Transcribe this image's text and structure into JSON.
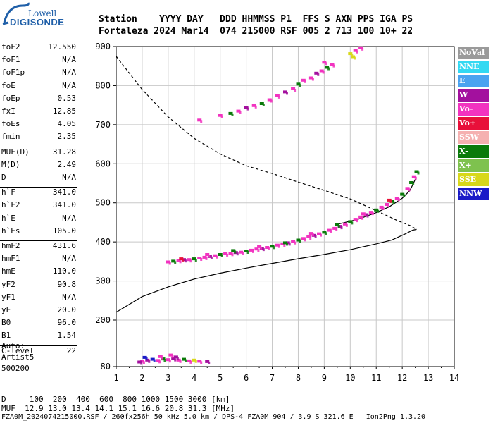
{
  "logo": {
    "line1": "Lowell",
    "line2": "DIGISONDE"
  },
  "header": {
    "line1": "Station    YYYY DAY   DDD HHMMSS P1  FFS S AXN PPS IGA PS",
    "line2": "Fortaleza 2024 Mar14  074 215000 RSF 005 2 713 100 10+ 22"
  },
  "params": {
    "group1": [
      {
        "label": "foF2",
        "value": "12.550"
      },
      {
        "label": "foF1",
        "value": "N/A"
      },
      {
        "label": "foF1p",
        "value": "N/A"
      },
      {
        "label": "foE",
        "value": "N/A"
      },
      {
        "label": "foEp",
        "value": "0.53"
      },
      {
        "label": "fxI",
        "value": "12.85"
      },
      {
        "label": "foEs",
        "value": "4.05"
      },
      {
        "label": "fmin",
        "value": "2.35"
      }
    ],
    "group2": [
      {
        "label": "MUF(D)",
        "value": "31.28"
      },
      {
        "label": "M(D)",
        "value": "2.49"
      },
      {
        "label": "D",
        "value": "N/A"
      }
    ],
    "group3": [
      {
        "label": "h`F",
        "value": "341.0"
      },
      {
        "label": "h`F2",
        "value": "341.0"
      },
      {
        "label": "h`E",
        "value": "N/A"
      },
      {
        "label": "h`Es",
        "value": "105.0"
      }
    ],
    "group4": [
      {
        "label": "hmF2",
        "value": "431.6"
      },
      {
        "label": "hmF1",
        "value": "N/A"
      },
      {
        "label": "hmE",
        "value": "110.0"
      },
      {
        "label": "yF2",
        "value": "90.8"
      },
      {
        "label": "yF1",
        "value": "N/A"
      },
      {
        "label": "yE",
        "value": "20.0"
      },
      {
        "label": "B0",
        "value": "96.0"
      },
      {
        "label": "B1",
        "value": "1.54"
      }
    ],
    "group5": [
      {
        "label": "C-level",
        "value": "22"
      }
    ]
  },
  "auto": {
    "line1": "Auto:",
    "line2": "Artist5",
    "line3": "500200"
  },
  "legend": [
    {
      "label": "NoVal",
      "color": "#9a9a9a"
    },
    {
      "label": "NNE",
      "color": "#33d9f2"
    },
    {
      "label": "E",
      "color": "#4aa3f0"
    },
    {
      "label": "W",
      "color": "#a3109e"
    },
    {
      "label": "Vo-",
      "color": "#f233c0"
    },
    {
      "label": "Vo+",
      "color": "#e8103a"
    },
    {
      "label": "SSW",
      "color": "#f5b0b0"
    },
    {
      "label": "X-",
      "color": "#0a7a0a"
    },
    {
      "label": "X+",
      "color": "#7ec24e"
    },
    {
      "label": "SSE",
      "color": "#d8d81a"
    },
    {
      "label": "NNW",
      "color": "#1a1ac8"
    }
  ],
  "footer": {
    "line1": "D     100  200  400  600  800 1000 1500 3000 [km]",
    "line2": "MUF  12.9 13.0 13.4 14.1 15.1 16.6 20.8 31.3 [MHz]",
    "line3": "FZA0M_2024074215000.RSF / 260fx256h 50 kHz 5.0 km / DPS-4 FZA0M 904 / 3.9 S 321.6 E   Ion2Png 1.3.20"
  },
  "chart_data": {
    "type": "scatter",
    "x_range": [
      1,
      14
    ],
    "y_range": [
      80,
      900
    ],
    "x_ticks": [
      "1",
      "2",
      "3",
      "4",
      "5",
      "6",
      "7",
      "8",
      "9",
      "10",
      "11",
      "12",
      "13",
      "14"
    ],
    "y_ticks": [
      {
        "value": 80,
        "label": "80"
      },
      {
        "value": 200,
        "label": "200"
      },
      {
        "value": 300,
        "label": "300"
      },
      {
        "value": 400,
        "label": "400"
      },
      {
        "value": 500,
        "label": "500"
      },
      {
        "value": 600,
        "label": "600"
      },
      {
        "value": 700,
        "label": "700"
      },
      {
        "value": 800,
        "label": "800"
      },
      {
        "value": 900,
        "label": "900"
      }
    ],
    "grid": true,
    "series": [
      {
        "kind": "line",
        "style": "solid",
        "color": "#000000",
        "points": [
          [
            1.0,
            220
          ],
          [
            2.0,
            260
          ],
          [
            3.0,
            285
          ],
          [
            4.0,
            305
          ],
          [
            5.0,
            320
          ],
          [
            6.0,
            333
          ],
          [
            7.0,
            345
          ],
          [
            8.0,
            357
          ],
          [
            9.0,
            368
          ],
          [
            10.0,
            380
          ],
          [
            11.0,
            395
          ],
          [
            11.6,
            405
          ],
          [
            12.1,
            420
          ],
          [
            12.4,
            430
          ],
          [
            12.55,
            432
          ]
        ]
      },
      {
        "kind": "line",
        "style": "solid",
        "color": "#000000",
        "points": [
          [
            9.5,
            445
          ],
          [
            10.3,
            458
          ],
          [
            11.0,
            475
          ],
          [
            11.5,
            490
          ],
          [
            12.0,
            512
          ],
          [
            12.3,
            532
          ],
          [
            12.5,
            560
          ]
        ]
      },
      {
        "kind": "line",
        "style": "dashed",
        "color": "#000000",
        "points": [
          [
            1.0,
            875
          ],
          [
            2.0,
            790
          ],
          [
            3.0,
            720
          ],
          [
            4.0,
            665
          ],
          [
            5.0,
            625
          ],
          [
            6.0,
            595
          ],
          [
            7.0,
            575
          ],
          [
            8.0,
            553
          ],
          [
            9.0,
            532
          ],
          [
            10.0,
            510
          ],
          [
            11.0,
            480
          ],
          [
            11.8,
            455
          ],
          [
            12.3,
            442
          ],
          [
            12.55,
            432
          ]
        ]
      },
      {
        "kind": "echo",
        "points": [
          [
            3.0,
            347,
            "#f233c0"
          ],
          [
            3.2,
            349,
            "#0a7a0a"
          ],
          [
            3.4,
            351,
            "#f233c0"
          ],
          [
            3.6,
            353,
            "#a3109e"
          ],
          [
            3.8,
            353,
            "#f233c0"
          ],
          [
            4.0,
            355,
            "#0a7a0a"
          ],
          [
            4.2,
            357,
            "#f233c0"
          ],
          [
            4.4,
            359,
            "#f233c0"
          ],
          [
            4.6,
            361,
            "#a3109e"
          ],
          [
            4.8,
            363,
            "#f233c0"
          ],
          [
            5.0,
            366,
            "#0a7a0a"
          ],
          [
            5.2,
            368,
            "#f233c0"
          ],
          [
            5.4,
            369,
            "#f233c0"
          ],
          [
            5.6,
            371,
            "#a3109e"
          ],
          [
            5.8,
            372,
            "#f233c0"
          ],
          [
            6.0,
            375,
            "#0a7a0a"
          ],
          [
            6.2,
            377,
            "#f233c0"
          ],
          [
            6.4,
            380,
            "#f233c0"
          ],
          [
            6.6,
            382,
            "#a3109e"
          ],
          [
            6.8,
            384,
            "#f233c0"
          ],
          [
            7.0,
            387,
            "#0a7a0a"
          ],
          [
            7.2,
            390,
            "#f233c0"
          ],
          [
            7.4,
            393,
            "#f233c0"
          ],
          [
            7.6,
            396,
            "#a3109e"
          ],
          [
            7.8,
            399,
            "#f233c0"
          ],
          [
            8.0,
            403,
            "#0a7a0a"
          ],
          [
            8.2,
            407,
            "#f233c0"
          ],
          [
            8.4,
            411,
            "#f233c0"
          ],
          [
            8.6,
            415,
            "#a3109e"
          ],
          [
            8.8,
            419,
            "#f233c0"
          ],
          [
            9.0,
            423,
            "#0a7a0a"
          ],
          [
            9.2,
            428,
            "#f233c0"
          ],
          [
            9.4,
            433,
            "#f233c0"
          ],
          [
            9.6,
            438,
            "#a3109e"
          ],
          [
            9.8,
            444,
            "#f233c0"
          ],
          [
            10.0,
            450,
            "#0a7a0a"
          ],
          [
            10.2,
            456,
            "#f233c0"
          ],
          [
            10.4,
            462,
            "#f233c0"
          ],
          [
            10.6,
            468,
            "#a3109e"
          ],
          [
            10.8,
            474,
            "#f233c0"
          ],
          [
            11.0,
            480,
            "#0a7a0a"
          ],
          [
            11.2,
            487,
            "#f233c0"
          ],
          [
            11.4,
            494,
            "#f233c0"
          ],
          [
            11.6,
            502,
            "#0a7a0a"
          ],
          [
            11.8,
            510,
            "#f233c0"
          ],
          [
            12.0,
            520,
            "#0a7a0a"
          ],
          [
            12.2,
            535,
            "#f233c0"
          ],
          [
            12.35,
            550,
            "#0a7a0a"
          ],
          [
            12.45,
            565,
            "#f233c0"
          ],
          [
            12.55,
            578,
            "#0a7a0a"
          ],
          [
            3.5,
            355,
            "#e8103a"
          ],
          [
            4.5,
            366,
            "#f233c0"
          ],
          [
            5.5,
            376,
            "#0a7a0a"
          ],
          [
            6.5,
            386,
            "#f233c0"
          ],
          [
            7.5,
            396,
            "#0a7a0a"
          ],
          [
            8.5,
            420,
            "#f233c0"
          ],
          [
            9.5,
            442,
            "#0a7a0a"
          ],
          [
            10.5,
            470,
            "#f233c0"
          ],
          [
            11.5,
            505,
            "#e8103a"
          ],
          [
            4.2,
            710,
            "#f233c0"
          ],
          [
            5.0,
            722,
            "#f233c0"
          ],
          [
            5.4,
            727,
            "#0a7a0a"
          ],
          [
            5.7,
            733,
            "#f233c0"
          ],
          [
            6.0,
            742,
            "#a3109e"
          ],
          [
            6.3,
            747,
            "#f233c0"
          ],
          [
            6.6,
            752,
            "#0a7a0a"
          ],
          [
            6.9,
            762,
            "#f233c0"
          ],
          [
            7.2,
            772,
            "#f233c0"
          ],
          [
            7.5,
            782,
            "#a3109e"
          ],
          [
            7.8,
            790,
            "#f233c0"
          ],
          [
            8.0,
            802,
            "#0a7a0a"
          ],
          [
            8.2,
            812,
            "#f233c0"
          ],
          [
            8.5,
            818,
            "#f233c0"
          ],
          [
            8.7,
            830,
            "#a3109e"
          ],
          [
            8.9,
            836,
            "#f233c0"
          ],
          [
            9.1,
            845,
            "#0a7a0a"
          ],
          [
            9.3,
            852,
            "#f233c0"
          ],
          [
            9.0,
            858,
            "#f233c0"
          ],
          [
            10.0,
            880,
            "#d8d81a"
          ],
          [
            10.2,
            888,
            "#f233c0"
          ],
          [
            10.4,
            895,
            "#f233c0"
          ],
          [
            10.1,
            872,
            "#d8d81a"
          ],
          [
            2.0,
            92,
            "#f233c0"
          ],
          [
            2.2,
            95,
            "#a3109e"
          ],
          [
            2.4,
            97,
            "#1a1ac8"
          ],
          [
            2.6,
            94,
            "#f233c0"
          ],
          [
            2.8,
            98,
            "#0a7a0a"
          ],
          [
            3.0,
            96,
            "#f233c0"
          ],
          [
            3.2,
            99,
            "#a3109e"
          ],
          [
            3.4,
            95,
            "#f233c0"
          ],
          [
            3.6,
            97,
            "#0a7a0a"
          ],
          [
            3.8,
            93,
            "#f233c0"
          ],
          [
            4.0,
            95,
            "#d8d81a"
          ],
          [
            4.2,
            92,
            "#f233c0"
          ],
          [
            4.5,
            91,
            "#a3109e"
          ],
          [
            2.1,
            102,
            "#1a1ac8"
          ],
          [
            2.7,
            104,
            "#f233c0"
          ],
          [
            3.3,
            103,
            "#a3109e"
          ],
          [
            1.9,
            90,
            "#a3109e"
          ],
          [
            3.1,
            108,
            "#f233c0"
          ]
        ]
      }
    ]
  }
}
